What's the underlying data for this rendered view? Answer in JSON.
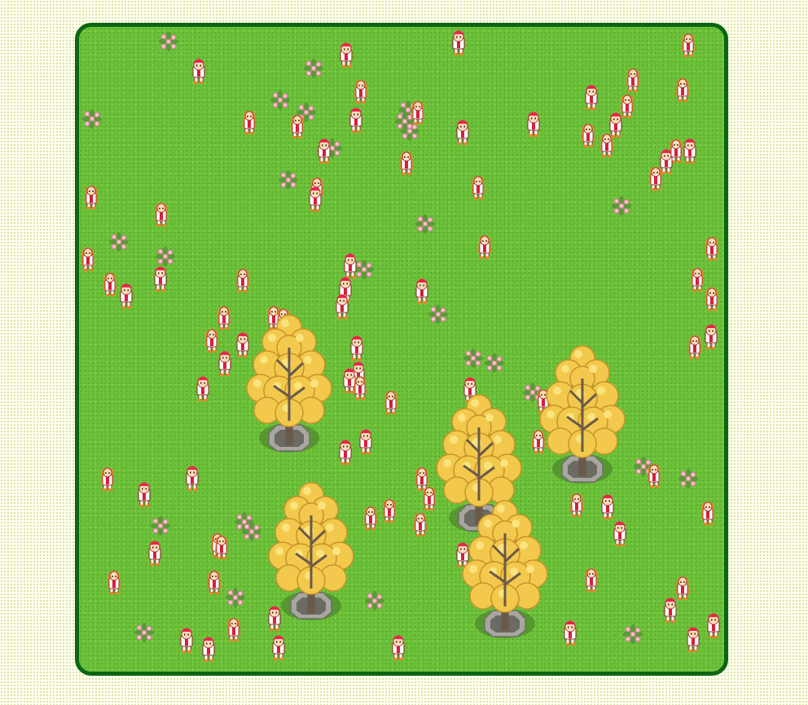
{
  "scene": {
    "field_color": "#6cc13a",
    "border_color": "#0b6512",
    "background_color": "#fffff2",
    "tree_foliage_color": "#f2c94c",
    "person_shirt_color": "#ffffff",
    "person_accent_color": "#d81e3c",
    "hair_color_cap": "#e8264a",
    "hair_color_long": "#e8852a",
    "flower_color": "#f7a6c4"
  },
  "counts": {
    "trees": 5,
    "flower_patches": 28,
    "people": 112
  }
}
